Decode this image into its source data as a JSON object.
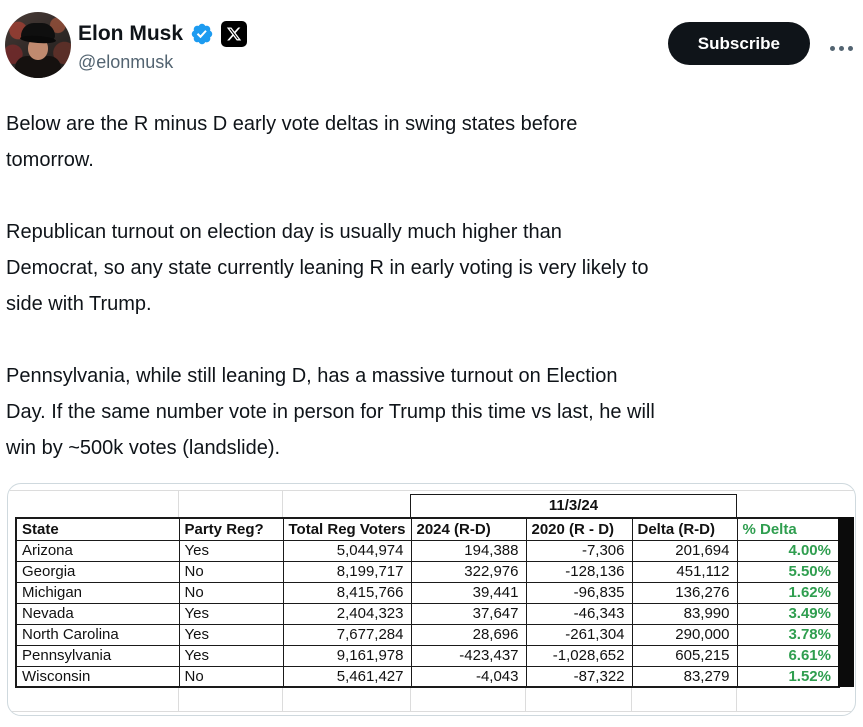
{
  "colors": {
    "verified_blue": "#1d9bf0",
    "percent_green": "#2f9e4f",
    "subscribe_bg": "#0f1419",
    "handle_gray": "#536471",
    "text_dark": "#0f1419",
    "media_border": "#cfd9de"
  },
  "header": {
    "display_name": "Elon Musk",
    "handle": "@elonmusk",
    "subscribe_label": "Subscribe"
  },
  "tweet": {
    "paragraphs": [
      [
        "Below are the R minus D early vote deltas in swing states before",
        "tomorrow."
      ],
      [
        "Republican turnout on election day is usually much higher than",
        "Democrat, so any state currently leaning R in early voting is very likely to",
        "side with Trump."
      ],
      [
        "Pennsylvania, while still leaning D, has a massive turnout on Election",
        "Day. If the same number vote in person for Trump this time vs last, he will",
        "win by ~500k votes (landslide)."
      ]
    ]
  },
  "spreadsheet": {
    "date_header": "11/3/24",
    "columns": [
      "State",
      "Party Reg?",
      "Total Reg Voters",
      "2024 (R-D)",
      "2020 (R - D)",
      "Delta (R-D)",
      "% Delta"
    ],
    "rows": [
      [
        "Arizona",
        "Yes",
        "5,044,974",
        "194,388",
        "-7,306",
        "201,694",
        "4.00%"
      ],
      [
        "Georgia",
        "No",
        "8,199,717",
        "322,976",
        "-128,136",
        "451,112",
        "5.50%"
      ],
      [
        "Michigan",
        "No",
        "8,415,766",
        "39,441",
        "-96,835",
        "136,276",
        "1.62%"
      ],
      [
        "Nevada",
        "Yes",
        "2,404,323",
        "37,647",
        "-46,343",
        "83,990",
        "3.49%"
      ],
      [
        "North Carolina",
        "Yes",
        "7,677,284",
        "28,696",
        "-261,304",
        "290,000",
        "3.78%"
      ],
      [
        "Pennsylvania",
        "Yes",
        "9,161,978",
        "-423,437",
        "-1,028,652",
        "605,215",
        "6.61%"
      ],
      [
        "Wisconsin",
        "No",
        "5,461,427",
        "-4,043",
        "-87,322",
        "83,279",
        "1.52%"
      ]
    ]
  }
}
